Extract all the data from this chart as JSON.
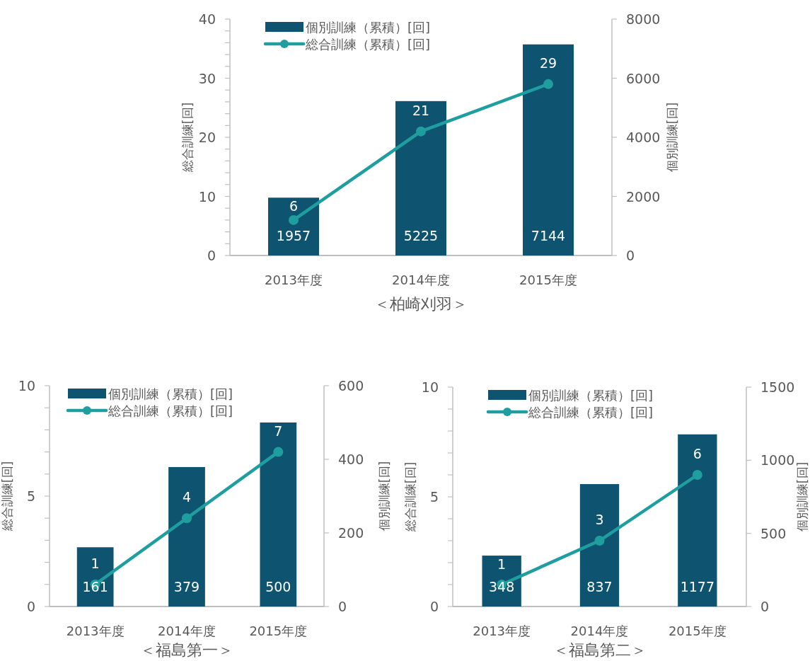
{
  "chart_data": [
    {
      "type": "bar",
      "xlabel": "＜柏崎刈羽＞",
      "ylabel": "総合訓練[回]",
      "y2label": "個別訓練[回]",
      "categories": [
        "2013年度",
        "2014年度",
        "2015年度"
      ],
      "series": [
        {
          "name": "個別訓練（累積）[回]",
          "type": "bar",
          "axis": "y2",
          "color": "#0e5470",
          "values": [
            1957,
            5225,
            7144
          ]
        },
        {
          "name": "総合訓練（累積）[回]",
          "type": "line",
          "axis": "y",
          "color": "#1f9ea0",
          "marker": "circle",
          "values": [
            6,
            21,
            29
          ]
        }
      ],
      "ylim": [
        0,
        40
      ],
      "yticks": [
        0,
        {
          "value": 2,
          "label": null
        },
        {
          "value": 4,
          "label": null
        },
        {
          "value": 6,
          "label": null
        },
        {
          "value": 8,
          "label": null
        },
        10,
        {
          "value": 12,
          "label": null
        },
        {
          "value": 14,
          "label": null
        },
        {
          "value": 16,
          "label": null
        },
        {
          "value": 18,
          "label": null
        },
        20,
        {
          "value": 22,
          "label": null
        },
        {
          "value": 24,
          "label": null
        },
        {
          "value": 26,
          "label": null
        },
        {
          "value": 28,
          "label": null
        },
        30,
        {
          "value": 32,
          "label": null
        },
        {
          "value": 34,
          "label": null
        },
        {
          "value": 36,
          "label": null
        },
        {
          "value": 38,
          "label": null
        },
        40
      ],
      "y2lim": [
        0,
        8000
      ],
      "y2ticks": [
        0,
        2000,
        4000,
        6000,
        8000
      ],
      "data_labels": true,
      "legend": "top left"
    },
    {
      "type": "bar",
      "xlabel": "＜福島第一＞",
      "ylabel": "総合訓練[回]",
      "y2label": "個別訓練[回]",
      "categories": [
        "2013年度",
        "2014年度",
        "2015年度"
      ],
      "series": [
        {
          "name": "個別訓練（累積）[回]",
          "type": "bar",
          "axis": "y2",
          "color": "#0e5470",
          "values": [
            161,
            379,
            500
          ]
        },
        {
          "name": "総合訓練（累積）[回]",
          "type": "line",
          "axis": "y",
          "color": "#1f9ea0",
          "marker": "circle",
          "values": [
            1,
            4,
            7
          ]
        }
      ],
      "ylim": [
        0,
        10
      ],
      "yticks": [
        0,
        {
          "value": 1,
          "label": null
        },
        {
          "value": 2,
          "label": null
        },
        {
          "value": 3,
          "label": null
        },
        {
          "value": 4,
          "label": null
        },
        5,
        {
          "value": 6,
          "label": null
        },
        {
          "value": 7,
          "label": null
        },
        {
          "value": 8,
          "label": null
        },
        {
          "value": 9,
          "label": null
        },
        10
      ],
      "y2lim": [
        0,
        600
      ],
      "y2ticks": [
        0,
        200,
        400,
        600
      ],
      "data_labels": true,
      "legend": "top left"
    },
    {
      "type": "bar",
      "xlabel": "＜福島第二＞",
      "ylabel": "総合訓練[回]",
      "y2label": "個別訓練[回]",
      "categories": [
        "2013年度",
        "2014年度",
        "2015年度"
      ],
      "series": [
        {
          "name": "個別訓練（累積）[回]",
          "type": "bar",
          "axis": "y2",
          "color": "#0e5470",
          "values": [
            348,
            837,
            1177
          ]
        },
        {
          "name": "総合訓練（累積）[回]",
          "type": "line",
          "axis": "y",
          "color": "#1f9ea0",
          "marker": "circle",
          "values": [
            1,
            3,
            6
          ]
        }
      ],
      "ylim": [
        0,
        10
      ],
      "yticks": [
        0,
        {
          "value": 1,
          "label": null
        },
        {
          "value": 2,
          "label": null
        },
        {
          "value": 3,
          "label": null
        },
        {
          "value": 4,
          "label": null
        },
        5,
        {
          "value": 6,
          "label": null
        },
        {
          "value": 7,
          "label": null
        },
        {
          "value": 8,
          "label": null
        },
        {
          "value": 9,
          "label": null
        },
        10
      ],
      "y2lim": [
        0,
        1500
      ],
      "y2ticks": [
        0,
        500,
        1000,
        1500
      ],
      "data_labels": true,
      "legend": "top left"
    }
  ]
}
